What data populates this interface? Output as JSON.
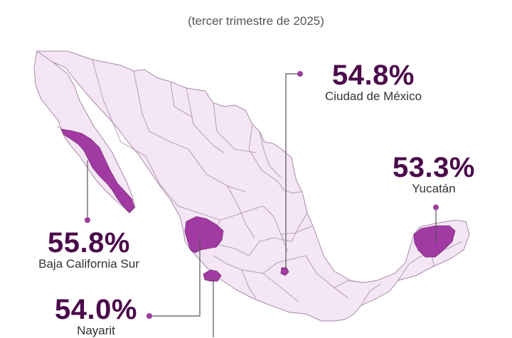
{
  "subtitle": "(tercer trimestre de 2025)",
  "colors": {
    "base_fill": "#f4e6f4",
    "border": "#a88aa8",
    "highlight": "#a23aa3",
    "marker": "#9b3d9c",
    "leader": "#555555",
    "value_text": "#4a0a4a",
    "label_text": "#333333"
  },
  "highlights": [
    {
      "value": "55.8%",
      "name": "Baja California Sur"
    },
    {
      "value": "54.8%",
      "name": "Ciudad de México"
    },
    {
      "value": "53.3%",
      "name": "Yucatán"
    },
    {
      "value": "54.0%",
      "name": "Nayarit"
    }
  ]
}
